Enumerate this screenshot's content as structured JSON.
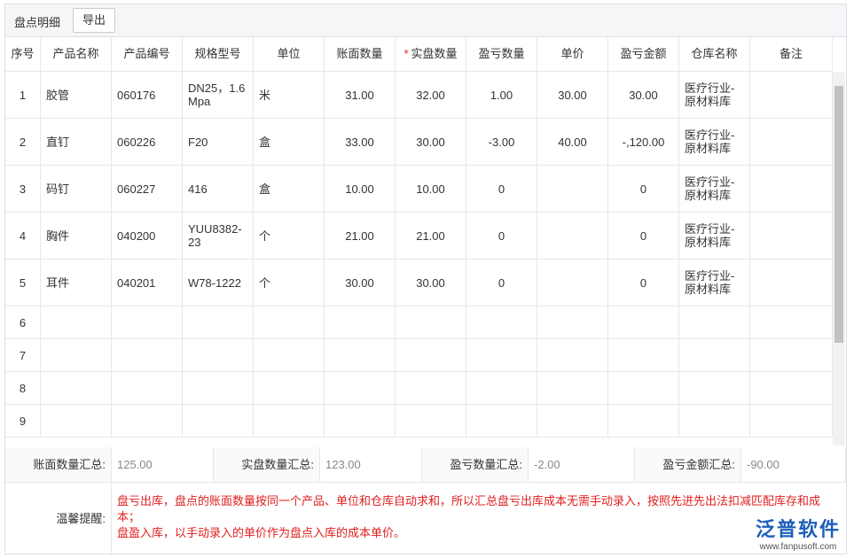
{
  "header": {
    "title": "盘点明细",
    "export_button": "导出"
  },
  "table": {
    "columns": [
      "序号",
      "产品名称",
      "产品编号",
      "规格型号",
      "单位",
      "账面数量",
      "实盘数量",
      "盈亏数量",
      "单价",
      "盈亏金额",
      "仓库名称",
      "备注"
    ],
    "required_mark": "*",
    "rows": [
      [
        "1",
        "胶管",
        "060176",
        "DN25，1.6Mpa",
        "米",
        "31.00",
        "32.00",
        "1.00",
        "30.00",
        "30.00",
        "医疗行业-原材料库",
        null
      ],
      [
        "2",
        "直钉",
        "060226",
        "F20",
        "盒",
        "33.00",
        "30.00",
        "-3.00",
        "40.00",
        "-,120.00",
        "医疗行业-原材料库",
        null
      ],
      [
        "3",
        "码钉",
        "060227",
        "416",
        "盒",
        "10.00",
        "10.00",
        "0",
        null,
        "0",
        "医疗行业-原材料库",
        null
      ],
      [
        "4",
        "胸件",
        "040200",
        "YUU8382-23",
        "个",
        "21.00",
        "21.00",
        "0",
        null,
        "0",
        "医疗行业-原材料库",
        null
      ],
      [
        "5",
        "耳件",
        "040201",
        "W78-1222",
        "个",
        "30.00",
        "30.00",
        "0",
        null,
        "0",
        "医疗行业-原材料库",
        null
      ],
      [
        "6",
        null,
        null,
        null,
        null,
        null,
        null,
        null,
        null,
        null,
        null,
        null
      ],
      [
        "7",
        null,
        null,
        null,
        null,
        null,
        null,
        null,
        null,
        null,
        null,
        null
      ],
      [
        "8",
        null,
        null,
        null,
        null,
        null,
        null,
        null,
        null,
        null,
        null,
        null
      ],
      [
        "9",
        null,
        null,
        null,
        null,
        null,
        null,
        null,
        null,
        null,
        null,
        null
      ]
    ]
  },
  "summary": [
    {
      "label": "账面数量汇总:",
      "value": "125.00"
    },
    {
      "label": "实盘数量汇总:",
      "value": "123.00"
    },
    {
      "label": "盈亏数量汇总:",
      "value": "-2.00"
    },
    {
      "label": "盈亏金额汇总:",
      "value": "-90.00"
    }
  ],
  "tip": {
    "label": "温馨提醒:",
    "lines": [
      "盘亏出库，盘点的账面数量按同一个产品、单位和仓库自动求和，所以汇总盘亏出库成本无需手动录入，按照先进先出法扣减匹配库存和成本；",
      "盘盈入库，以手动录入的单价作为盘点入库的成本单价。"
    ]
  },
  "logo": {
    "name": "泛普软件",
    "url": "www.fanpusoft.com"
  }
}
